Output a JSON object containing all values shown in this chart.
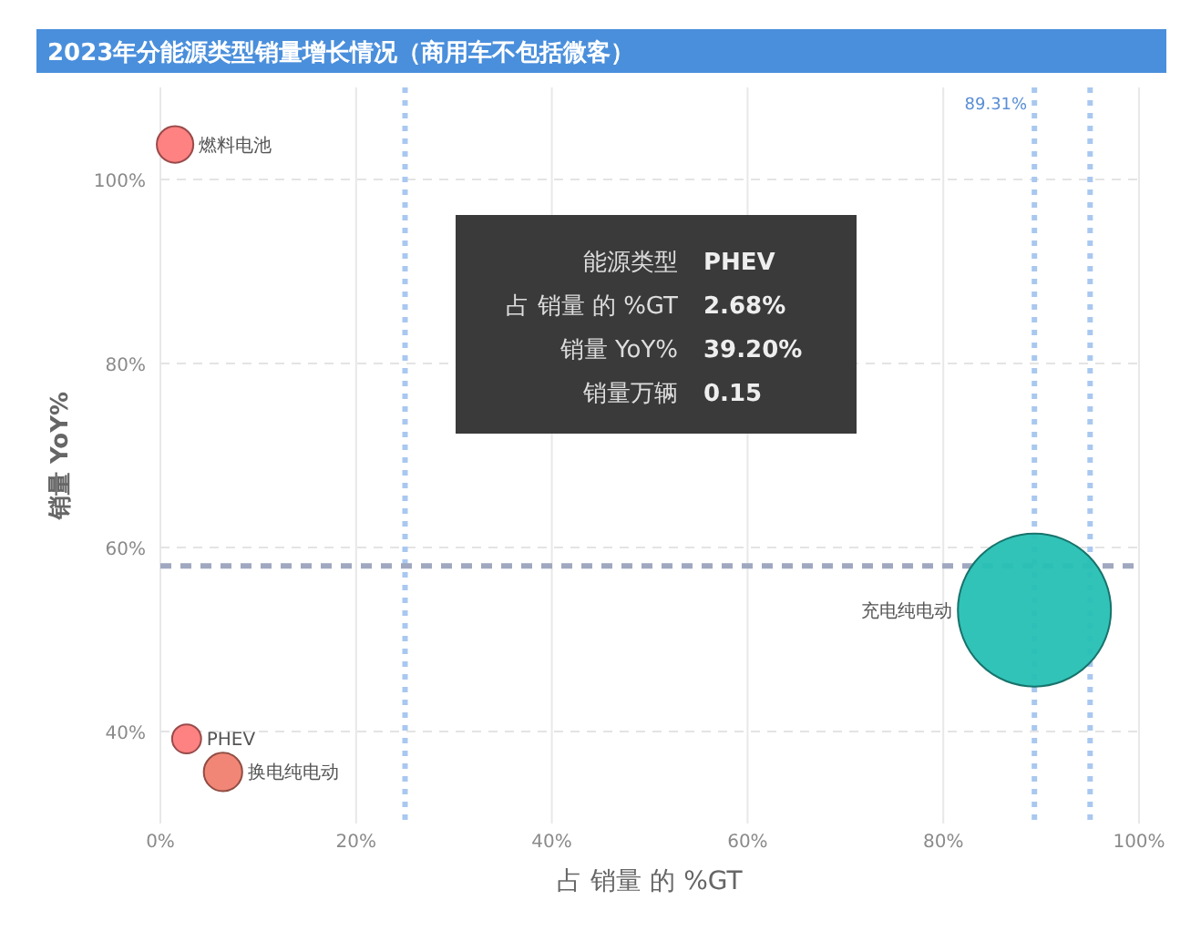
{
  "chart_data": {
    "type": "bubble",
    "title": "2023年分能源类型销量增长情况（商用车不包括微客）",
    "xlabel": "占 销量 的 %GT",
    "ylabel": "销量 YoY%",
    "xlim": [
      0,
      100
    ],
    "ylim": [
      30,
      110
    ],
    "xticks": [
      {
        "value": 0,
        "label": "0%"
      },
      {
        "value": 20,
        "label": "20%"
      },
      {
        "value": 40,
        "label": "40%"
      },
      {
        "value": 60,
        "label": "60%"
      },
      {
        "value": 80,
        "label": "80%"
      },
      {
        "value": 100,
        "label": "100%"
      }
    ],
    "yticks": [
      {
        "value": 40,
        "label": "40%"
      },
      {
        "value": 60,
        "label": "60%"
      },
      {
        "value": 80,
        "label": "80%"
      },
      {
        "value": 100,
        "label": "100%"
      }
    ],
    "grid": true,
    "series": [
      {
        "name": "燃料电池",
        "color": "#ff7b7b",
        "x": [
          1.5
        ],
        "values": [
          103.8
        ],
        "sizes": [
          0.057
        ]
      },
      {
        "name": "PHEV",
        "color": "#ff7b7b",
        "x": [
          2.68
        ],
        "values": [
          39.2
        ],
        "sizes": [
          0.036
        ]
      },
      {
        "name": "换电纯电动",
        "color": "#f08070",
        "x": [
          6.4
        ],
        "values": [
          35.6
        ],
        "sizes": [
          0.063
        ]
      },
      {
        "name": "充电纯电动",
        "color": "#26c0b4",
        "x": [
          89.31
        ],
        "values": [
          53.2
        ],
        "sizes": [
          1
        ]
      }
    ],
    "ref_lines": [
      {
        "axis": "x",
        "value": 25,
        "color": "#a9c8f0",
        "line_style": "dotted"
      },
      {
        "axis": "x",
        "value": 89.31,
        "label": "89.31%",
        "color": "#a9c8f0",
        "line_style": "dotted"
      },
      {
        "axis": "x",
        "value": 95,
        "color": "#a9c8f0",
        "line_style": "dotted"
      },
      {
        "axis": "y",
        "value": 58,
        "color": "#a0a8c0",
        "line_style": "dashed"
      }
    ],
    "annotations": [
      "能源类型",
      "PHEV",
      "占 销量 的 %GT",
      "2.68%",
      "销量 YoY%",
      "39.20%",
      "销量万辆",
      "0.15"
    ]
  }
}
